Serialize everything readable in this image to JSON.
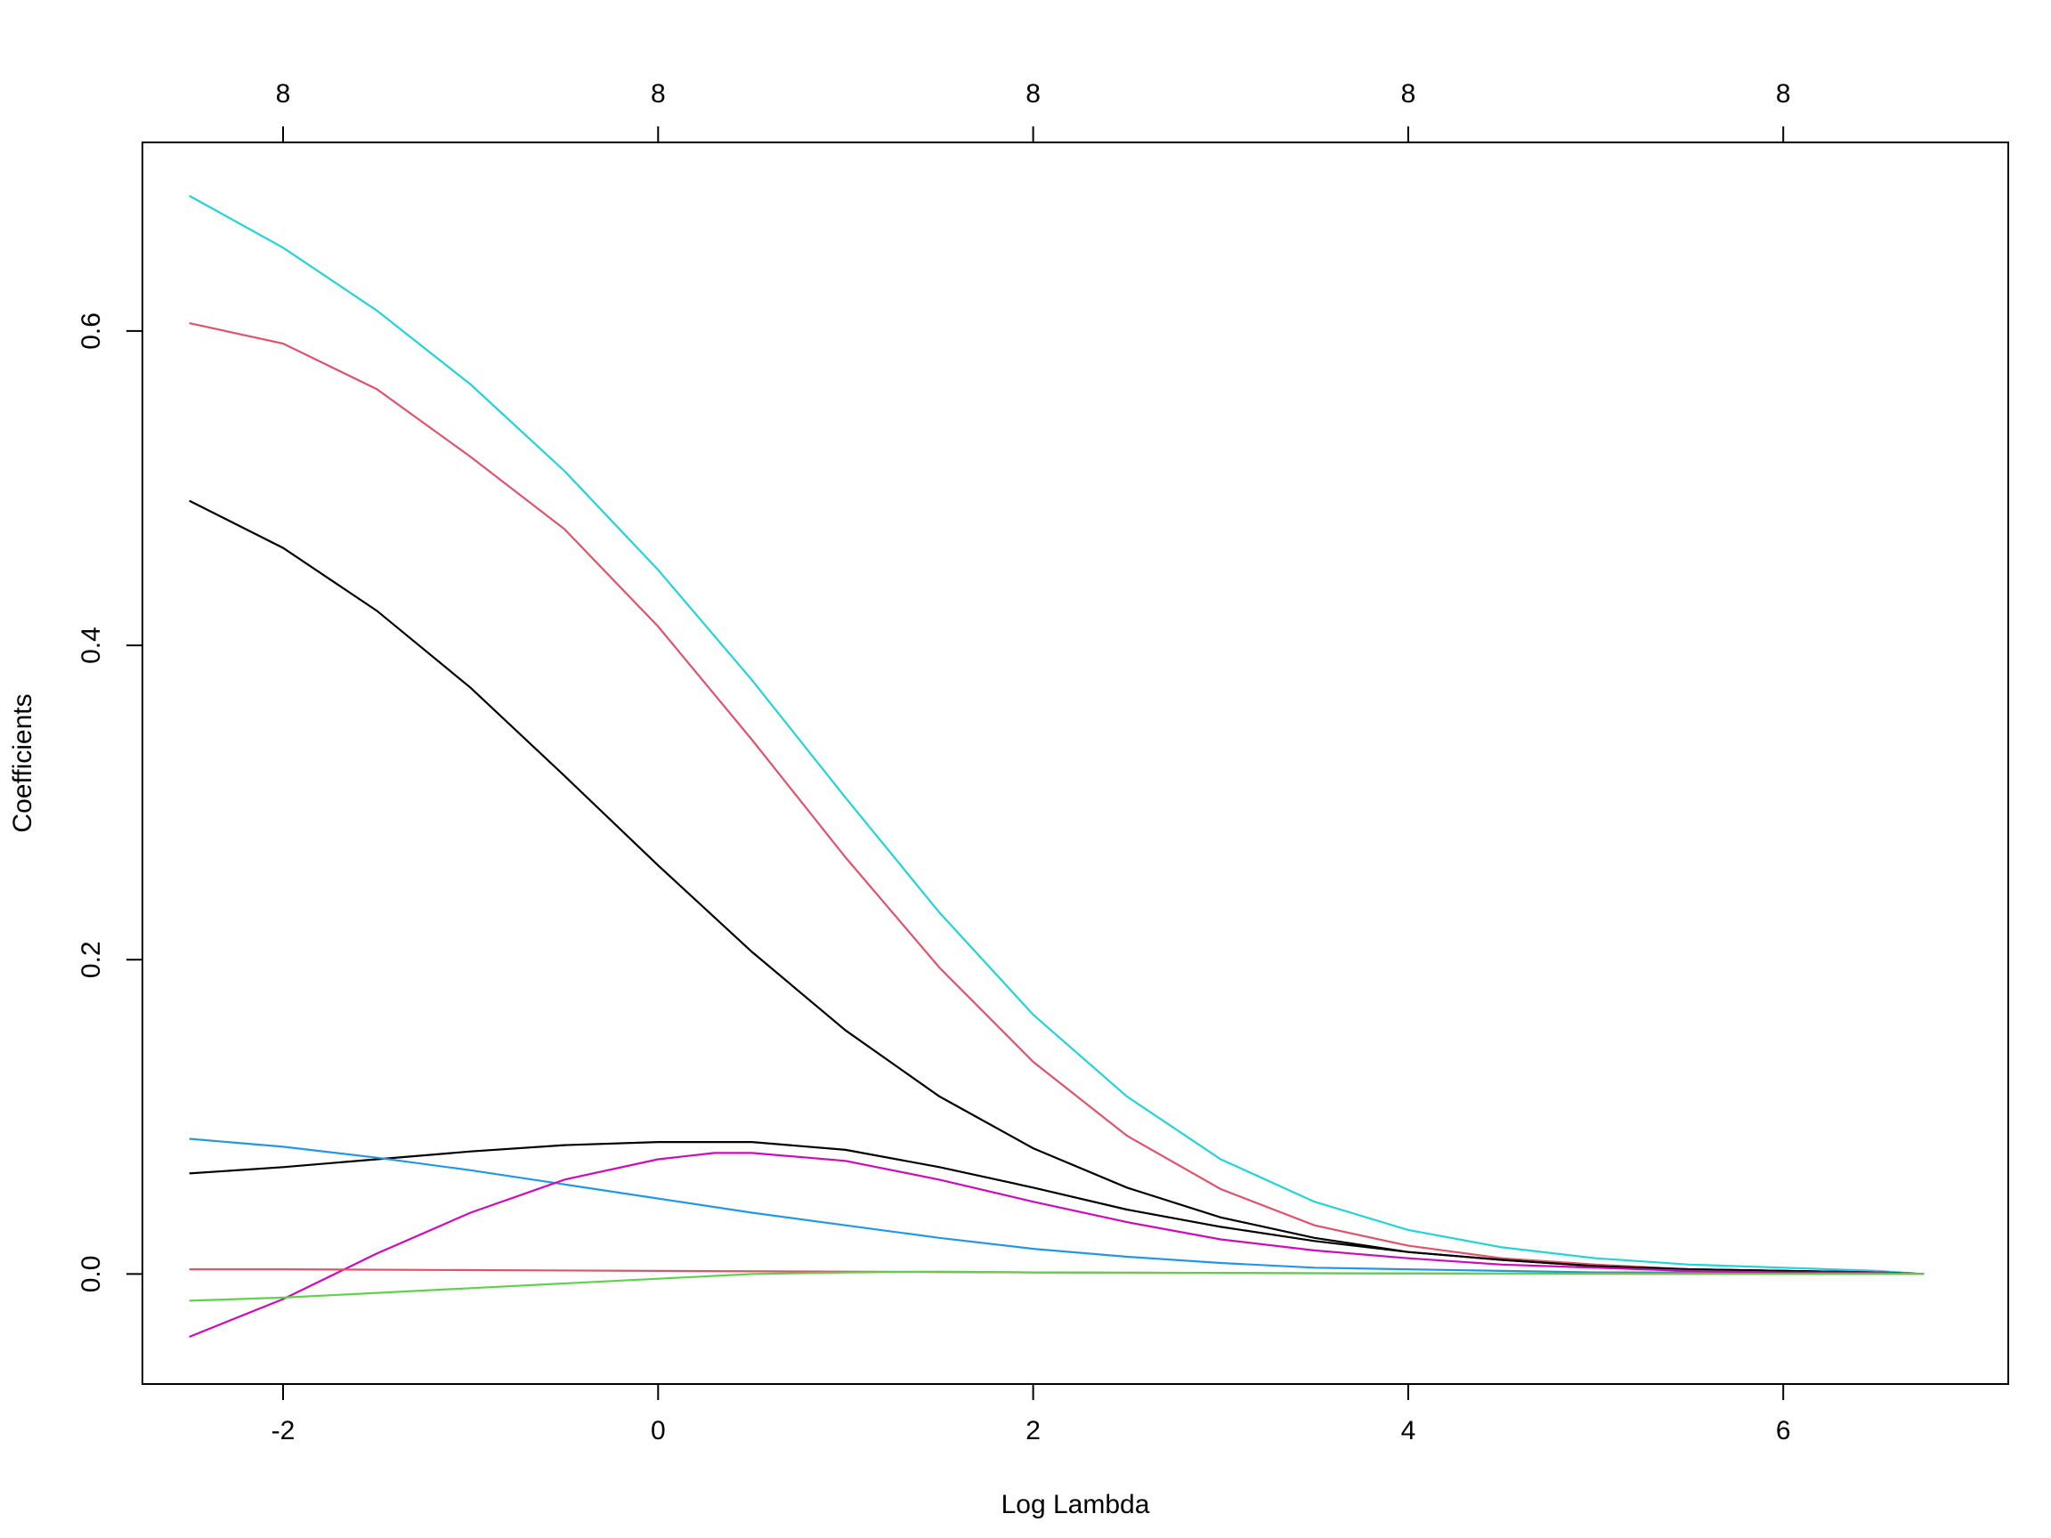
{
  "chart_data": {
    "type": "line",
    "title": "",
    "xlabel": "Log Lambda",
    "ylabel": "Coefficients",
    "xlim": [
      -2.75,
      7.2
    ],
    "ylim": [
      -0.07,
      0.72
    ],
    "x_ticks": [
      -2,
      0,
      2,
      4,
      6
    ],
    "x_tick_labels": [
      "-2",
      "0",
      "2",
      "4",
      "6"
    ],
    "y_ticks": [
      0.0,
      0.2,
      0.4,
      0.6
    ],
    "y_tick_labels": [
      "0.0",
      "0.2",
      "0.4",
      "0.6"
    ],
    "top_axis": {
      "ticks": [
        -2,
        0,
        2,
        4,
        6
      ],
      "labels": [
        "8",
        "8",
        "8",
        "8",
        "8"
      ]
    },
    "grid": false,
    "legend": "none",
    "series": [
      {
        "color": "#22d3d8",
        "x": [
          -2.5,
          -2,
          -1.5,
          -1,
          -0.5,
          0,
          0.5,
          1,
          1.5,
          2,
          2.5,
          3,
          3.5,
          4,
          4.5,
          5,
          5.5,
          6,
          6.5,
          6.75
        ],
        "y": [
          0.686,
          0.653,
          0.613,
          0.566,
          0.511,
          0.448,
          0.378,
          0.303,
          0.23,
          0.165,
          0.113,
          0.073,
          0.046,
          0.028,
          0.017,
          0.01,
          0.006,
          0.004,
          0.002,
          0.0
        ]
      },
      {
        "color": "#df536b",
        "x": [
          -2.5,
          -2,
          -1.5,
          -1,
          -0.5,
          0,
          0.5,
          1,
          1.5,
          2,
          2.5,
          3,
          3.5,
          4,
          4.5,
          5,
          5.5,
          6,
          6.5,
          6.75
        ],
        "y": [
          0.605,
          0.592,
          0.563,
          0.52,
          0.474,
          0.412,
          0.34,
          0.265,
          0.195,
          0.135,
          0.088,
          0.054,
          0.031,
          0.018,
          0.01,
          0.006,
          0.003,
          0.002,
          0.001,
          0.0
        ]
      },
      {
        "color": "#000000",
        "x": [
          -2.5,
          -2,
          -1.5,
          -1,
          -0.5,
          0,
          0.5,
          1,
          1.5,
          2,
          2.5,
          3,
          3.5,
          4,
          4.5,
          5,
          5.5,
          6,
          6.5,
          6.75
        ],
        "y": [
          0.492,
          0.462,
          0.422,
          0.373,
          0.317,
          0.26,
          0.205,
          0.155,
          0.113,
          0.08,
          0.055,
          0.036,
          0.023,
          0.014,
          0.009,
          0.005,
          0.003,
          0.002,
          0.001,
          0.0
        ]
      },
      {
        "color": "#000000",
        "x": [
          -2.5,
          -2,
          -1.5,
          -1,
          -0.5,
          0,
          0.5,
          1,
          1.5,
          2,
          2.5,
          3,
          3.5,
          4,
          4.5,
          5,
          5.5,
          6,
          6.5,
          6.75
        ],
        "y": [
          0.064,
          0.068,
          0.073,
          0.078,
          0.082,
          0.084,
          0.084,
          0.079,
          0.068,
          0.055,
          0.041,
          0.03,
          0.021,
          0.014,
          0.009,
          0.005,
          0.003,
          0.002,
          0.001,
          0.0
        ]
      },
      {
        "color": "#2297e6",
        "x": [
          -2.5,
          -2,
          -1.5,
          -1,
          -0.5,
          0,
          0.5,
          1,
          1.5,
          2,
          2.5,
          3,
          3.5,
          4,
          4.5,
          5,
          5.5,
          6,
          6.5,
          6.75
        ],
        "y": [
          0.086,
          0.081,
          0.074,
          0.066,
          0.057,
          0.048,
          0.039,
          0.031,
          0.023,
          0.016,
          0.011,
          0.007,
          0.004,
          0.003,
          0.002,
          0.001,
          0.001,
          0.0,
          0.0,
          0.0
        ]
      },
      {
        "color": "#cd0bbc",
        "x": [
          -2.5,
          -2,
          -1.5,
          -1,
          -0.5,
          0,
          0.3,
          0.5,
          1,
          1.5,
          2,
          2.5,
          3,
          3.5,
          4,
          4.5,
          5,
          5.5,
          6,
          6.5,
          6.75
        ],
        "y": [
          -0.04,
          -0.016,
          0.013,
          0.039,
          0.06,
          0.073,
          0.077,
          0.077,
          0.072,
          0.06,
          0.046,
          0.033,
          0.022,
          0.015,
          0.01,
          0.006,
          0.004,
          0.002,
          0.001,
          0.001,
          0.0
        ]
      },
      {
        "color": "#df536b",
        "x": [
          -2.5,
          -2,
          -1,
          0,
          1,
          2,
          3,
          4,
          5,
          6,
          6.75
        ],
        "y": [
          0.003,
          0.003,
          0.0025,
          0.002,
          0.0015,
          0.001,
          0.0007,
          0.0004,
          0.0002,
          0.0001,
          0.0
        ]
      },
      {
        "color": "#61d04f",
        "x": [
          -2.5,
          -2,
          -1.5,
          -1,
          -0.5,
          0,
          0.5,
          1,
          1.5,
          2,
          3,
          4,
          5,
          6,
          6.75
        ],
        "y": [
          -0.017,
          -0.015,
          -0.012,
          -0.009,
          -0.006,
          -0.003,
          0.0,
          0.001,
          0.0015,
          0.001,
          0.0006,
          0.0003,
          0.0001,
          0.0,
          0.0
        ]
      }
    ]
  }
}
